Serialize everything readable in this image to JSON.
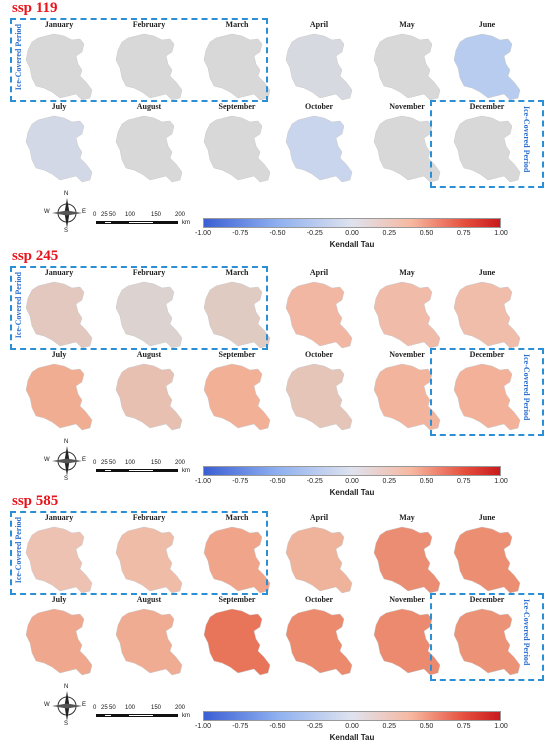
{
  "months": [
    "January",
    "February",
    "March",
    "April",
    "May",
    "June",
    "July",
    "August",
    "September",
    "October",
    "November",
    "December"
  ],
  "ice_label": "Ice-Covered Period",
  "colorbar": {
    "title": "Kendall Tau",
    "ticks": [
      "-1.00",
      "-0.75",
      "-0.50",
      "-0.25",
      "0.00",
      "0.25",
      "0.50",
      "0.75",
      "1.00"
    ],
    "colors": {
      "neg": "#3b5fd4",
      "zero": "#dfe3ef",
      "pos": "#c81a1e"
    }
  },
  "scalebar": {
    "labels": [
      "0",
      "25",
      "50",
      "100",
      "150",
      "200"
    ],
    "unit": "km"
  },
  "compass": {
    "n": "N",
    "e": "E",
    "s": "S",
    "w": "W"
  },
  "panels": [
    {
      "title": "ssp 119",
      "fills": [
        "#d8d8d8",
        "#d8d8d8",
        "#d8d8d8",
        "#d6d9df",
        "#d8d8d8",
        "#b7ccef",
        "#d2d8e6",
        "#d8d8d8",
        "#d8d8d8",
        "#c9d5ec",
        "#d8d8d8",
        "#d8d8d8"
      ]
    },
    {
      "title": "ssp 245",
      "fills": [
        "#e2c8bf",
        "#dcd2cf",
        "#e0cbc3",
        "#f2b7a2",
        "#f0bba8",
        "#efbdaa",
        "#f1ad92",
        "#e8c0b2",
        "#f2b197",
        "#e6c5b9",
        "#f2b49d",
        "#f2b198"
      ]
    },
    {
      "title": "ssp 585",
      "fills": [
        "#eec2b3",
        "#efbca8",
        "#f0a48a",
        "#efb39b",
        "#eb8d72",
        "#ec8e72",
        "#efa88e",
        "#efac92",
        "#e8755a",
        "#eb8a6d",
        "#eb8a6e",
        "#ec9276"
      ]
    }
  ]
}
